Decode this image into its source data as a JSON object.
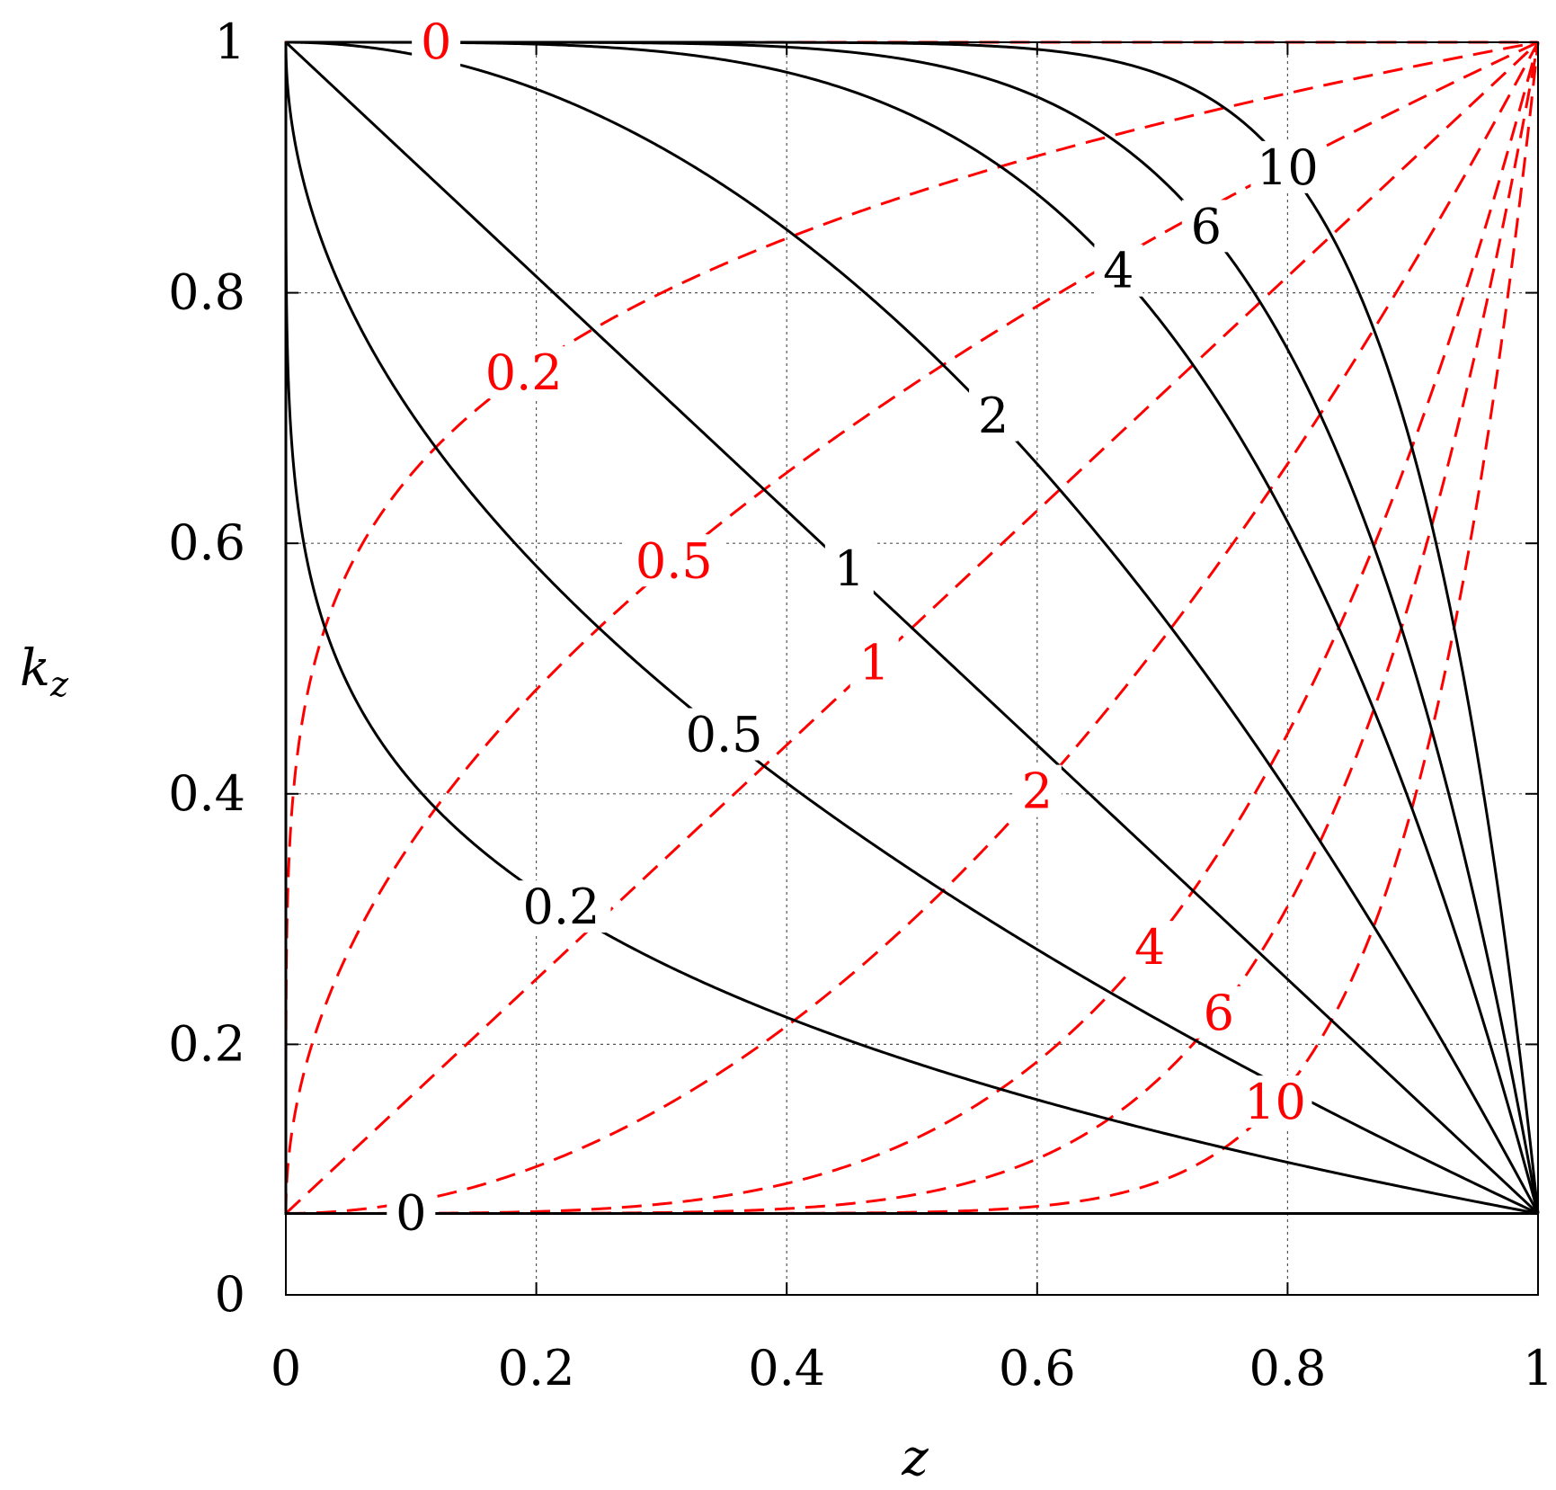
{
  "chart_data": {
    "type": "line",
    "title": "",
    "xlabel": "z",
    "ylabel": "k",
    "ylabel_subscript": "z",
    "xlim": [
      0,
      1
    ],
    "ylim": [
      0,
      1
    ],
    "grid": true,
    "x_ticks": [
      0,
      0.2,
      0.4,
      0.6,
      0.8,
      1
    ],
    "y_ticks": [
      0,
      0.2,
      0.4,
      0.6,
      0.8,
      1
    ],
    "x_tick_labels": [
      "0",
      "0.2",
      "0.4",
      "0.6",
      "0.8",
      "1"
    ],
    "y_tick_labels": [
      "0",
      "0.2",
      "0.4",
      "0.6",
      "0.8",
      "1"
    ],
    "family_range": {
      "bottom": 0.065,
      "top": 1.0
    },
    "colors": {
      "solid": "#000000",
      "dashed": "#ff0000",
      "grid": "#555555"
    },
    "solid_series": [
      {
        "label": "0",
        "param": 0,
        "label_at": 0.1
      },
      {
        "label": "0.2",
        "param": 0.2,
        "label_at": 0.22
      },
      {
        "label": "0.5",
        "param": 0.5,
        "label_at": 0.35
      },
      {
        "label": "1",
        "param": 1,
        "label_at": 0.45
      },
      {
        "label": "2",
        "param": 2,
        "label_at": 0.565
      },
      {
        "label": "4",
        "param": 4,
        "label_at": 0.665
      },
      {
        "label": "6",
        "param": 6,
        "label_at": 0.735
      },
      {
        "label": "10",
        "param": 10,
        "label_at": 0.8
      }
    ],
    "dashed_series": [
      {
        "label": "0",
        "param": 0,
        "label_at": 0.12
      },
      {
        "label": "0.2",
        "param": 0.2,
        "label_at": 0.19
      },
      {
        "label": "0.5",
        "param": 0.5,
        "label_at": 0.31
      },
      {
        "label": "1",
        "param": 1,
        "label_at": 0.47
      },
      {
        "label": "2",
        "param": 2,
        "label_at": 0.6
      },
      {
        "label": "4",
        "param": 4,
        "label_at": 0.69
      },
      {
        "label": "6",
        "param": 6,
        "label_at": 0.745
      },
      {
        "label": "10",
        "param": 10,
        "label_at": 0.79
      }
    ]
  }
}
